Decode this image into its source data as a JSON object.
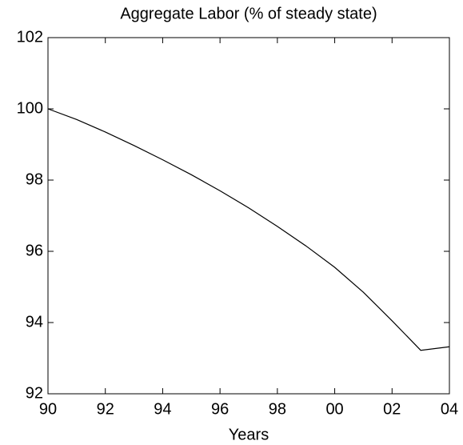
{
  "chart_data": {
    "type": "line",
    "title": "Aggregate Labor (% of steady state)",
    "x_label": "Years",
    "categories": [
      "90",
      null,
      "92",
      null,
      "94",
      null,
      "96",
      null,
      "98",
      null,
      "00",
      null,
      "02",
      null,
      "04"
    ],
    "series": [
      {
        "color": "#000000",
        "values": [
          100.0,
          99.7,
          99.35,
          98.97,
          98.57,
          98.15,
          97.7,
          97.22,
          96.7,
          96.15,
          95.55,
          94.85,
          94.05,
          93.22,
          93.32
        ]
      }
    ],
    "ylim": [
      92,
      102
    ],
    "yticks": [
      92,
      94,
      96,
      98,
      100,
      102
    ],
    "grid": false
  }
}
